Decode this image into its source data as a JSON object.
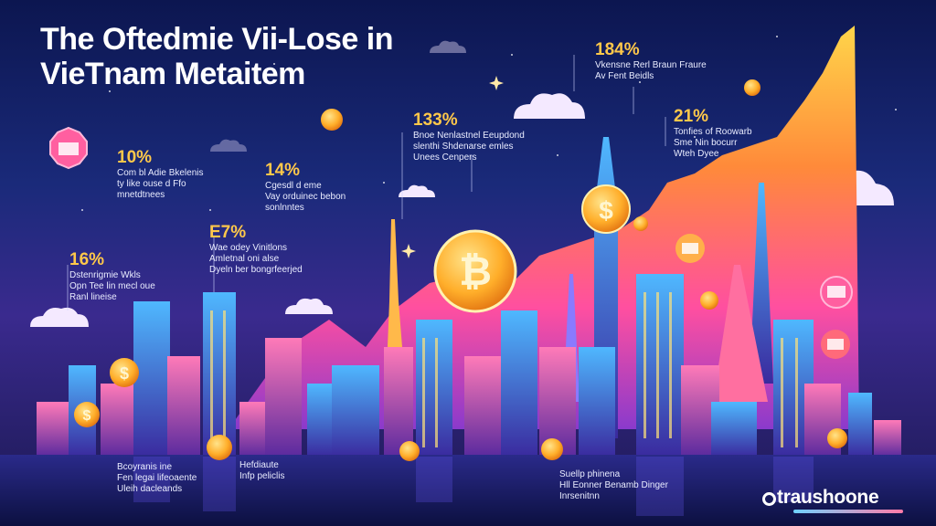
{
  "title": {
    "line1": "The Oftedmie Vii-Lose in",
    "line2": "VieTnam Metaitem"
  },
  "stats": [
    {
      "pct": "10%",
      "lines": [
        "Com bl Adie Bkelenis",
        "ty like ouse d Ffo",
        "mnetdtnees"
      ]
    },
    {
      "pct": "14%",
      "lines": [
        "Cgesdl d eme",
        "Vay orduinec bebon",
        "sonlnntes"
      ]
    },
    {
      "pct": "E7%",
      "lines": [
        "Wae odey Vinitlons",
        "Amletnal oni alse",
        "Dyeln ber bongrfeerjed"
      ]
    },
    {
      "pct": "16%",
      "lines": [
        "Dstenrigmie Wkls",
        "Opn Tee lin mecl oue",
        "Ranl lineise"
      ]
    },
    {
      "pct": "133%",
      "lines": [
        "Bnoe Nenlastnel Eeupdond",
        "slenthi Shdenarse emles",
        "Unees Cenpers"
      ]
    },
    {
      "pct": "184%",
      "lines": [
        "Vkensne Rerl Braun Fraure",
        "Av Fent Beidls"
      ]
    },
    {
      "pct": "21%",
      "lines": [
        "Tonfies of Roowarb",
        "Sme Nin bocurr",
        "Wteh Dyee"
      ]
    }
  ],
  "footnotes": [
    {
      "lines": [
        "Bcoyranis ine",
        "Fen legai lifeoaente",
        "Uleih dacleands"
      ]
    },
    {
      "lines": [
        "Hefdiaute",
        "Infp peliclis"
      ]
    },
    {
      "lines": [
        "Suellp phinena",
        "Hll Eonner Benamb Dinger",
        "Inrsenitnn"
      ]
    }
  ],
  "brand": {
    "name": "traushoone"
  },
  "icons": [
    "bitcoin-coin-icon",
    "dollar-coin-icon",
    "shop-badge-icon"
  ],
  "colors": {
    "sky_top": "#0c1650",
    "accent_gold": "#ffc84a",
    "mountain_orange": "#ff8a3a",
    "mountain_pink": "#ff4fa0"
  }
}
